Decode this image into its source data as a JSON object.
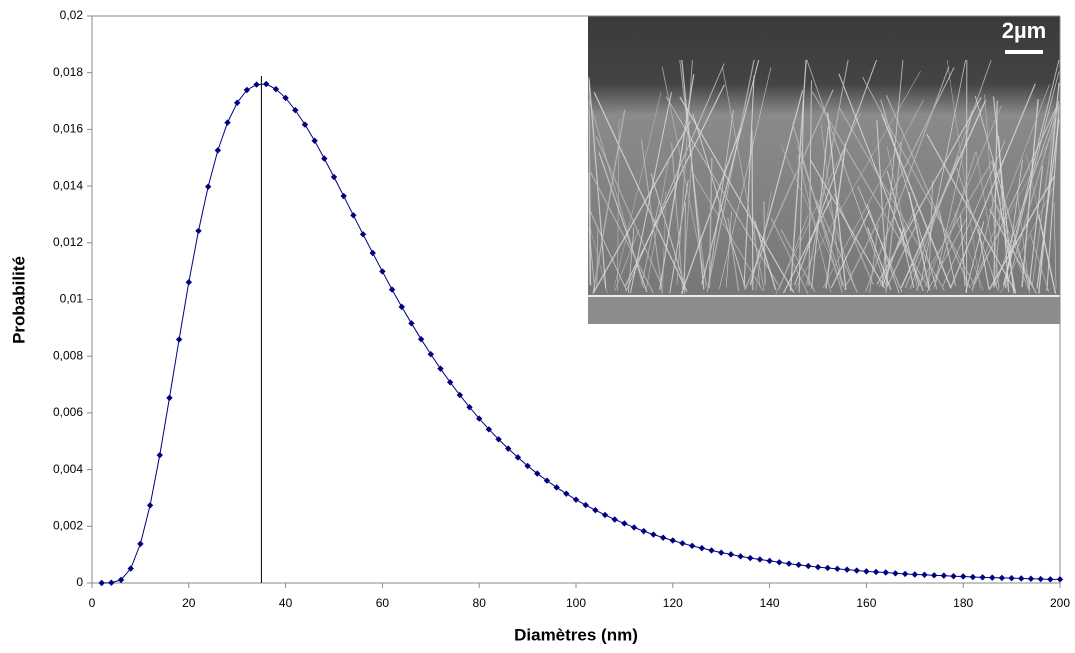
{
  "chart_data": {
    "type": "line",
    "x_label": "Diamètres (nm)",
    "y_label": "Probabilité",
    "x": [
      2,
      4,
      6,
      8,
      10,
      12,
      14,
      16,
      18,
      20,
      22,
      24,
      26,
      28,
      30,
      32,
      34,
      36,
      38,
      40,
      42,
      44,
      46,
      48,
      50,
      52,
      54,
      56,
      58,
      60,
      62,
      64,
      66,
      68,
      70,
      72,
      74,
      76,
      78,
      80,
      82,
      84,
      86,
      88,
      90,
      92,
      94,
      96,
      98,
      100,
      102,
      104,
      106,
      108,
      110,
      112,
      114,
      116,
      118,
      120,
      122,
      124,
      126,
      128,
      130,
      132,
      134,
      136,
      138,
      140,
      142,
      144,
      146,
      148,
      150,
      152,
      154,
      156,
      158,
      160,
      162,
      164,
      166,
      168,
      170,
      172,
      174,
      176,
      178,
      180,
      182,
      184,
      186,
      188,
      190,
      192,
      194,
      196,
      198,
      200
    ],
    "series": [
      {
        "color": "#000080",
        "values": [
          0,
          1e-05,
          0.00011,
          0.00051,
          0.00138,
          0.00274,
          0.00451,
          0.00653,
          0.00859,
          0.01061,
          0.01242,
          0.01398,
          0.01526,
          0.01624,
          0.01694,
          0.01739,
          0.01758,
          0.0176,
          0.01742,
          0.01711,
          0.01668,
          0.01617,
          0.0156,
          0.01497,
          0.01432,
          0.01365,
          0.01297,
          0.0123,
          0.01164,
          0.01099,
          0.01035,
          0.00974,
          0.00916,
          0.0086,
          0.00807,
          0.00756,
          0.00708,
          0.00663,
          0.0062,
          0.0058,
          0.00542,
          0.00507,
          0.00474,
          0.00443,
          0.00413,
          0.00386,
          0.00361,
          0.00337,
          0.00315,
          0.00294,
          0.00275,
          0.00257,
          0.0024,
          0.00224,
          0.0021,
          0.00196,
          0.00183,
          0.00171,
          0.0016,
          0.0015,
          0.0014,
          0.00131,
          0.00123,
          0.00115,
          0.00107,
          0.00101,
          0.00094,
          0.00088,
          0.00083,
          0.00078,
          0.00073,
          0.00068,
          0.00064,
          0.0006,
          0.00056,
          0.00053,
          0.0005,
          0.00047,
          0.00044,
          0.00041,
          0.00039,
          0.00037,
          0.00034,
          0.00032,
          0.0003,
          0.00029,
          0.00027,
          0.00026,
          0.00024,
          0.00023,
          0.00021,
          0.0002,
          0.00019,
          0.00018,
          0.00017,
          0.00016,
          0.00015,
          0.00014,
          0.00013,
          0.00013
        ]
      }
    ],
    "mode_line_x": 35,
    "inset_label": "2µm",
    "xlim": [
      0,
      200
    ],
    "xticks": [
      0,
      20,
      40,
      60,
      80,
      100,
      120,
      140,
      160,
      180,
      200
    ],
    "ylim": [
      0,
      0.02
    ],
    "yticks": [
      0,
      {
        "value": 0.002,
        "label": "0,002"
      },
      {
        "value": 0.004,
        "label": "0,004"
      },
      {
        "value": 0.006,
        "label": "0,006"
      },
      {
        "value": 0.008,
        "label": "0,008"
      },
      {
        "value": 0.01,
        "label": "0,01"
      },
      {
        "value": 0.012,
        "label": "0,012"
      },
      {
        "value": 0.014,
        "label": "0,014"
      },
      {
        "value": 0.016,
        "label": "0,016"
      },
      {
        "value": 0.018,
        "label": "0,018"
      },
      {
        "value": 0.02,
        "label": "0,02"
      }
    ]
  }
}
